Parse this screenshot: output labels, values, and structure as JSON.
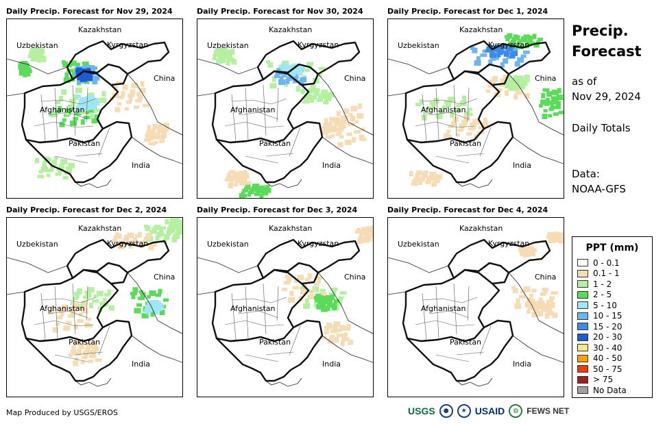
{
  "panels": [
    {
      "title": "Daily Precip. Forecast for Nov 29, 2024"
    },
    {
      "title": "Daily Precip. Forecast for Nov 30, 2024"
    },
    {
      "title": "Daily Precip. Forecast for Dec 1, 2024"
    },
    {
      "title": "Daily Precip. Forecast for Dec 2, 2024"
    },
    {
      "title": "Daily Precip. Forecast for Dec 3, 2024"
    },
    {
      "title": "Daily Precip. Forecast for Dec 4, 2024"
    }
  ],
  "country_labels": {
    "kazakhstan": "Kazakhstan",
    "uzbekistan": "Uzbekistan",
    "kyrgyzstan": "Kyrgyzstan",
    "china": "China",
    "afghanistan": "Afghanistan",
    "pakistan": "Pakistan",
    "india": "India"
  },
  "sidebar": {
    "title_line1": "Precip.",
    "title_line2": "Forecast",
    "asof_line1": "as of",
    "asof_line2": "Nov 29, 2024",
    "totals": "Daily Totals",
    "data_line1": "Data:",
    "data_line2": "NOAA-GFS"
  },
  "legend": {
    "title": "PPT (mm)",
    "items": [
      {
        "label": "0 - 0.1",
        "color": "#ffffff"
      },
      {
        "label": "0.1 - 1",
        "color": "#f5dcb4"
      },
      {
        "label": "1 - 2",
        "color": "#b4f0a0"
      },
      {
        "label": "2 - 5",
        "color": "#5adc5a"
      },
      {
        "label": "5 - 10",
        "color": "#a0e6f5"
      },
      {
        "label": "10 - 15",
        "color": "#6eb4f0"
      },
      {
        "label": "15 - 20",
        "color": "#3c8ce6"
      },
      {
        "label": "20 - 30",
        "color": "#1e5ad2"
      },
      {
        "label": "30 - 40",
        "color": "#fae68c"
      },
      {
        "label": "40 - 50",
        "color": "#faa000"
      },
      {
        "label": "50 - 75",
        "color": "#f03c00"
      },
      {
        "label": "> 75",
        "color": "#a01e1e"
      },
      {
        "label": "No Data",
        "color": "#a0a0a0"
      }
    ]
  },
  "footer": {
    "credit": "Map Produced by USGS/EROS"
  },
  "logos": {
    "usgs": "USGS",
    "usaid": "USAID",
    "fewsnet": "FEWS NET"
  }
}
